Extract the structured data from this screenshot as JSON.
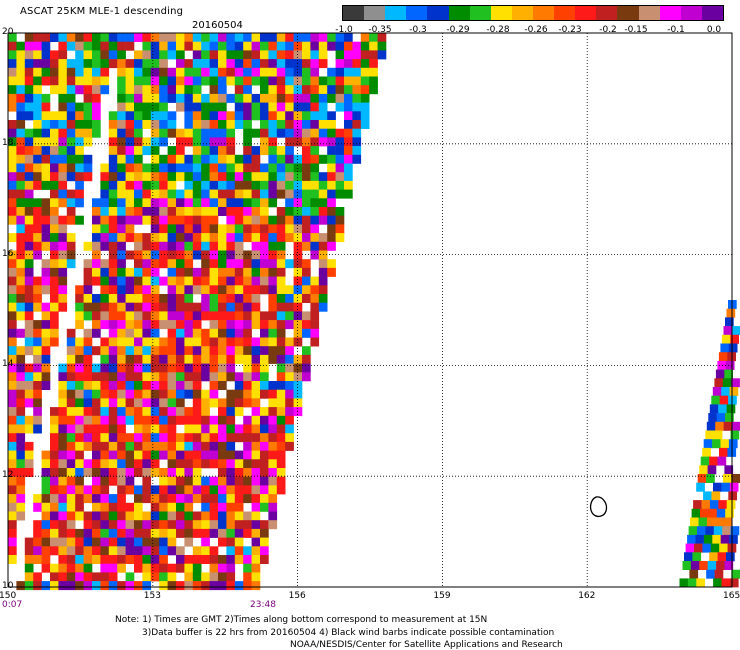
{
  "title": "ASCAT 25KM MLE-1 descending",
  "date": "20160504",
  "colorbar": {
    "colors": [
      "#3a3a3a",
      "#8f8f8f",
      "#00b8ff",
      "#0066ff",
      "#0033cc",
      "#008c00",
      "#20c020",
      "#ffe000",
      "#ffb000",
      "#ff7a00",
      "#ff4000",
      "#ff1a1a",
      "#c02020",
      "#7a3a10",
      "#c89070",
      "#ff00ff",
      "#c000d0",
      "#6a00a0"
    ],
    "labels": [
      "-1.0",
      "-0.35",
      "-0.3",
      "-0.29",
      "-0.28",
      "-0.26",
      "-0.23",
      "-0.2",
      "-0.15",
      "-0.1",
      "0.0"
    ]
  },
  "map": {
    "lon_ticks": [
      "150",
      "153",
      "156",
      "159",
      "162",
      "165"
    ],
    "lat_ticks": [
      "20",
      "18",
      "16",
      "14",
      "12",
      "10"
    ],
    "lon_range": [
      150,
      165
    ],
    "lat_range": [
      10,
      20
    ],
    "times": [
      "0:07",
      "23:48"
    ]
  },
  "notes": {
    "line1": "Note: 1) Times are GMT 2)Times along bottom correspond to measurement at 15N",
    "line2": "3)Data buffer is 22 hrs from 20160504 4) Black wind barbs indicate possible contamination",
    "line3": "NOAA/NESDIS/Center for Satellite Applications and Research"
  }
}
